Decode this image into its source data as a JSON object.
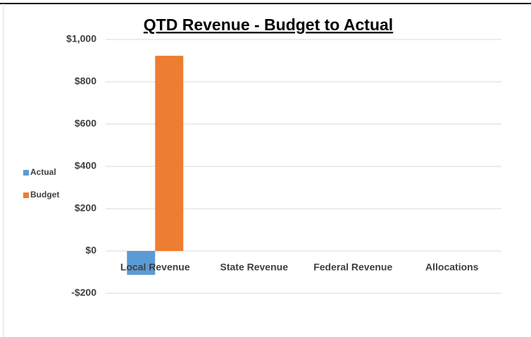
{
  "chart_data": {
    "type": "bar",
    "title": "QTD Revenue - Budget to Actual",
    "categories": [
      "Local Revenue",
      "State Revenue",
      "Federal Revenue",
      "Allocations"
    ],
    "series": [
      {
        "name": "Actual",
        "color": "#5b9bd5",
        "values": [
          -113,
          0,
          0,
          0
        ]
      },
      {
        "name": "Budget",
        "color": "#ed7d31",
        "values": [
          923,
          0,
          0,
          0
        ]
      }
    ],
    "ylim": [
      -200,
      1000
    ],
    "yticks": [
      {
        "value": -200,
        "label": "-$200"
      },
      {
        "value": 0,
        "label": "$0"
      },
      {
        "value": 200,
        "label": "$200"
      },
      {
        "value": 400,
        "label": "$400"
      },
      {
        "value": 600,
        "label": "$600"
      },
      {
        "value": 800,
        "label": "$800"
      },
      {
        "value": 1000,
        "label": "$1,000"
      }
    ],
    "grid": true,
    "legend": "left"
  }
}
